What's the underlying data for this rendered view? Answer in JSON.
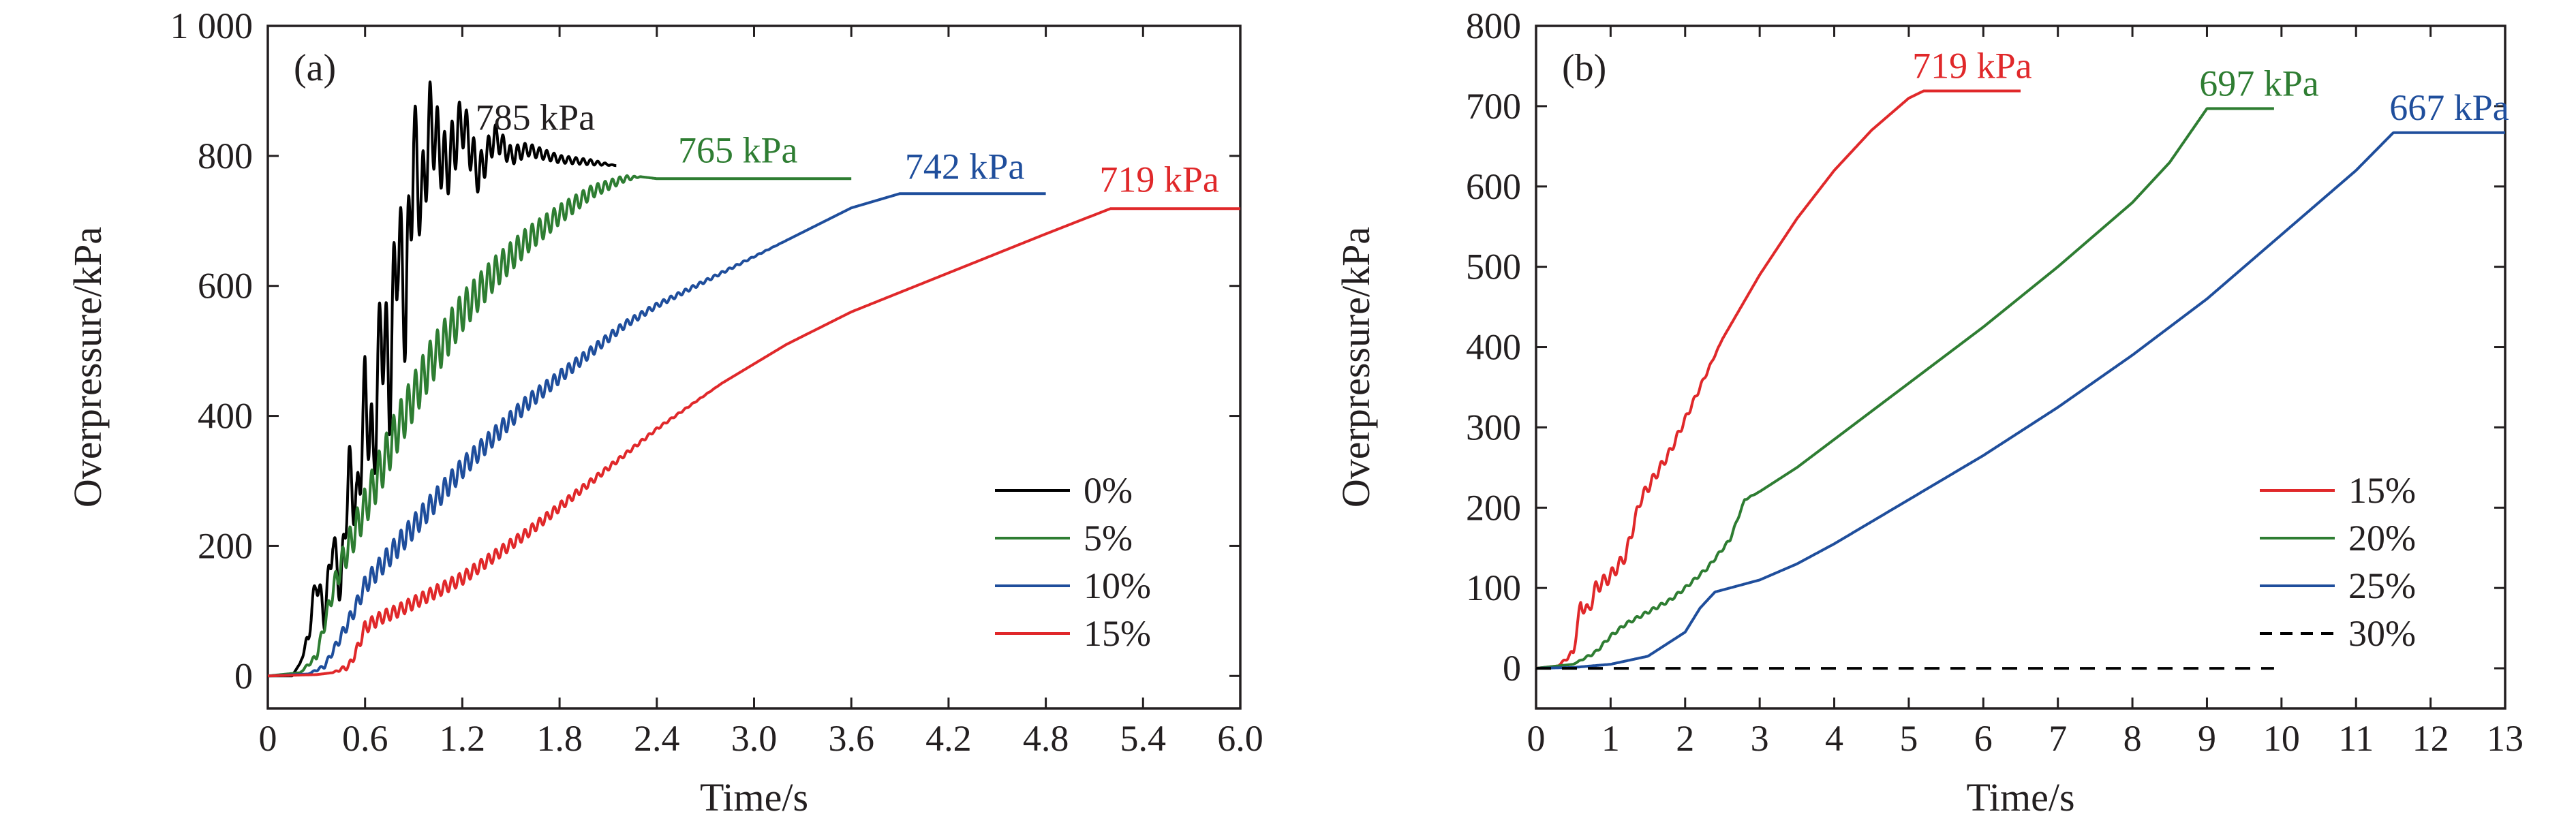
{
  "chart_data": [
    {
      "type": "line",
      "panel_label": "(a)",
      "xlabel": "Time/s",
      "ylabel": "Overpressure/kPa",
      "xlim": [
        0,
        6.0
      ],
      "ylim": [
        -50,
        1000
      ],
      "xticks": [
        0,
        0.6,
        1.2,
        1.8,
        2.4,
        3.0,
        3.6,
        4.2,
        4.8,
        5.4,
        6.0
      ],
      "xtick_labels": [
        "0",
        "0.6",
        "1.2",
        "1.8",
        "2.4",
        "3.0",
        "3.6",
        "4.2",
        "4.8",
        "5.4",
        "6.0"
      ],
      "yticks": [
        0,
        200,
        400,
        600,
        800,
        1000
      ],
      "ytick_labels": [
        "0",
        "200",
        "400",
        "600",
        "800",
        "1 000"
      ],
      "grid": false,
      "legend_position": "lower-right",
      "series": [
        {
          "name": "0%",
          "color": "#000000",
          "dash": "solid",
          "x": [
            0,
            0.15,
            0.2,
            0.25,
            0.3,
            0.35,
            0.4,
            0.45,
            0.5,
            0.55,
            0.6,
            0.65,
            0.7,
            0.75,
            0.8,
            0.85,
            0.9,
            0.95,
            1.0,
            1.1,
            1.2,
            1.3,
            1.4,
            1.5,
            1.6,
            1.8,
            2.0,
            2.15
          ],
          "y": [
            0,
            0,
            20,
            60,
            150,
            90,
            210,
            130,
            320,
            250,
            440,
            330,
            550,
            450,
            680,
            560,
            820,
            720,
            855,
            780,
            855,
            770,
            830,
            800,
            810,
            795,
            790,
            785
          ],
          "oscillation_amplitude": [
            0,
            0,
            0,
            10,
            20,
            20,
            25,
            30,
            40,
            50,
            60,
            70,
            80,
            90,
            90,
            90,
            80,
            70,
            60,
            50,
            40,
            30,
            20,
            15,
            10,
            6,
            4,
            0
          ]
        },
        {
          "name": "5%",
          "color": "#2e7d32",
          "dash": "solid",
          "x": [
            0,
            0.2,
            0.3,
            0.35,
            0.4,
            0.45,
            0.5,
            0.6,
            0.7,
            0.8,
            0.9,
            1.0,
            1.2,
            1.4,
            1.6,
            1.8,
            2.0,
            2.2,
            2.3,
            2.4,
            3.0,
            3.6
          ],
          "y": [
            0,
            5,
            30,
            80,
            130,
            170,
            200,
            260,
            320,
            380,
            430,
            480,
            560,
            620,
            670,
            710,
            745,
            765,
            768,
            765,
            765,
            765
          ],
          "oscillation_amplitude": [
            0,
            0,
            5,
            10,
            15,
            20,
            25,
            30,
            35,
            35,
            35,
            35,
            30,
            25,
            20,
            15,
            10,
            5,
            0,
            0,
            0,
            0
          ]
        },
        {
          "name": "10%",
          "color": "#1f4e9c",
          "dash": "solid",
          "x": [
            0,
            0.25,
            0.35,
            0.45,
            0.55,
            0.6,
            0.7,
            0.8,
            1.0,
            1.2,
            1.4,
            1.6,
            1.8,
            2.0,
            2.2,
            2.4,
            2.8,
            3.2,
            3.6,
            3.9,
            4.0,
            4.4,
            4.8
          ],
          "y": [
            0,
            3,
            15,
            60,
            110,
            140,
            170,
            200,
            260,
            320,
            370,
            420,
            460,
            500,
            540,
            570,
            620,
            670,
            720,
            742,
            742,
            742,
            742
          ],
          "oscillation_amplitude": [
            0,
            0,
            3,
            8,
            12,
            14,
            16,
            18,
            18,
            16,
            14,
            12,
            10,
            8,
            6,
            4,
            2,
            0,
            0,
            0,
            0,
            0,
            0
          ]
        },
        {
          "name": "15%",
          "color": "#e0282a",
          "dash": "solid",
          "x": [
            0,
            0.3,
            0.4,
            0.5,
            0.55,
            0.6,
            0.7,
            0.8,
            1.0,
            1.2,
            1.4,
            1.6,
            1.8,
            2.0,
            2.2,
            2.4,
            2.8,
            3.2,
            3.6,
            4.0,
            4.4,
            4.8,
            5.2,
            5.6,
            6.0
          ],
          "y": [
            0,
            2,
            5,
            15,
            40,
            75,
            90,
            100,
            125,
            150,
            185,
            220,
            260,
            300,
            340,
            380,
            450,
            510,
            560,
            600,
            640,
            680,
            719,
            719,
            719
          ],
          "oscillation_amplitude": [
            0,
            0,
            0,
            5,
            8,
            10,
            10,
            10,
            10,
            10,
            9,
            8,
            7,
            5,
            3,
            2,
            0,
            0,
            0,
            0,
            0,
            0,
            0,
            0,
            0
          ]
        }
      ],
      "annotations": [
        {
          "text": "785 kPa",
          "x": 1.65,
          "y": 840,
          "color": "#231f20"
        },
        {
          "text": "765 kPa",
          "x": 2.9,
          "y": 790,
          "color": "#2e7d32"
        },
        {
          "text": "742 kPa",
          "x": 4.3,
          "y": 765,
          "color": "#1f4e9c"
        },
        {
          "text": "719 kPa",
          "x": 5.5,
          "y": 745,
          "color": "#e0282a"
        }
      ]
    },
    {
      "type": "line",
      "panel_label": "(b)",
      "xlabel": "Time/s",
      "ylabel": "Overpressure/kPa",
      "xlim": [
        0,
        13
      ],
      "ylim": [
        -50,
        800
      ],
      "xticks": [
        0,
        1,
        2,
        3,
        4,
        5,
        6,
        7,
        8,
        9,
        10,
        11,
        12,
        13
      ],
      "xtick_labels": [
        "0",
        "1",
        "2",
        "3",
        "4",
        "5",
        "6",
        "7",
        "8",
        "9",
        "10",
        "11",
        "12",
        "13"
      ],
      "yticks": [
        0,
        100,
        200,
        300,
        400,
        500,
        600,
        700,
        800
      ],
      "ytick_labels": [
        "0",
        "100",
        "200",
        "300",
        "400",
        "500",
        "600",
        "700",
        "800"
      ],
      "grid": false,
      "legend_position": "lower-right",
      "series": [
        {
          "name": "15%",
          "color": "#e0282a",
          "dash": "solid",
          "x": [
            0,
            0.3,
            0.5,
            0.6,
            0.7,
            0.8,
            1.0,
            1.2,
            1.4,
            1.6,
            1.8,
            2.0,
            2.2,
            2.5,
            3.0,
            3.5,
            4.0,
            4.5,
            5.0,
            5.2,
            5.6,
            6.5
          ],
          "y": [
            0,
            3,
            20,
            80,
            70,
            100,
            115,
            140,
            210,
            240,
            270,
            310,
            350,
            410,
            490,
            560,
            620,
            670,
            710,
            719,
            719,
            719
          ],
          "oscillation_amplitude": [
            0,
            0,
            4,
            8,
            8,
            8,
            8,
            7,
            7,
            6,
            5,
            4,
            3,
            0,
            0,
            0,
            0,
            0,
            0,
            0,
            0,
            0
          ]
        },
        {
          "name": "20%",
          "color": "#2e7d32",
          "dash": "solid",
          "x": [
            0,
            0.5,
            0.8,
            1.0,
            1.2,
            1.5,
            1.8,
            2.0,
            2.3,
            2.6,
            2.8,
            3.0,
            3.5,
            4.0,
            5.0,
            6.0,
            7.0,
            8.0,
            8.5,
            9.0,
            9.3,
            9.9
          ],
          "y": [
            0,
            5,
            20,
            40,
            55,
            70,
            85,
            100,
            125,
            160,
            210,
            220,
            250,
            285,
            355,
            425,
            500,
            580,
            630,
            697,
            697,
            697
          ],
          "oscillation_amplitude": [
            0,
            0,
            2,
            2,
            2,
            2,
            2,
            2,
            2,
            2,
            1,
            0,
            0,
            0,
            0,
            0,
            0,
            0,
            0,
            0,
            0,
            0
          ]
        },
        {
          "name": "25%",
          "color": "#1f4e9c",
          "dash": "solid",
          "x": [
            0,
            0.5,
            1.0,
            1.5,
            2.0,
            2.2,
            2.4,
            2.6,
            3.0,
            3.5,
            4.0,
            5.0,
            6.0,
            7.0,
            8.0,
            9.0,
            10.0,
            11.0,
            11.5,
            12.0,
            13.0
          ],
          "y": [
            0,
            1,
            5,
            15,
            45,
            75,
            95,
            100,
            110,
            130,
            155,
            210,
            265,
            325,
            390,
            460,
            540,
            620,
            667,
            667,
            667
          ],
          "oscillation_amplitude": [
            0,
            0,
            0,
            0,
            0,
            0,
            0,
            0,
            0,
            0,
            0,
            0,
            0,
            0,
            0,
            0,
            0,
            0,
            0,
            0,
            0
          ]
        },
        {
          "name": "30%",
          "color": "#000000",
          "dash": "dashed",
          "x": [
            0,
            9.9
          ],
          "y": [
            0,
            0
          ],
          "oscillation_amplitude": [
            0,
            0
          ]
        }
      ],
      "annotations": [
        {
          "text": "719 kPa",
          "x": 5.85,
          "y": 735,
          "color": "#e0282a"
        },
        {
          "text": "697 kPa",
          "x": 9.7,
          "y": 713,
          "color": "#2e7d32"
        },
        {
          "text": "667 kPa",
          "x": 12.25,
          "y": 683,
          "color": "#1f4e9c"
        }
      ]
    }
  ]
}
